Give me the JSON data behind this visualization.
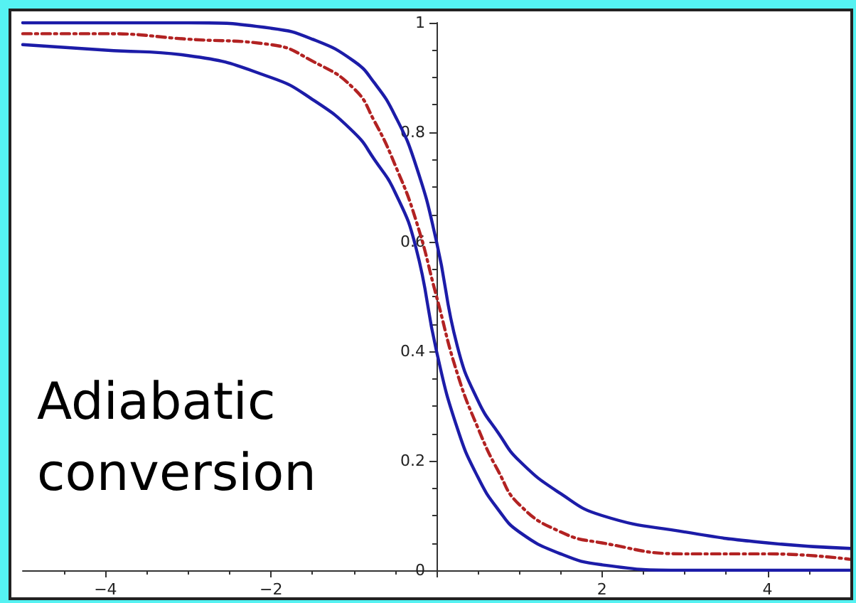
{
  "chart_data": {
    "type": "line",
    "x": [
      -5,
      -4,
      -3,
      -2,
      -1.5,
      -1,
      -0.75,
      -0.5,
      -0.25,
      0,
      0.25,
      0.5,
      0.75,
      1,
      1.5,
      2,
      3,
      4,
      5
    ],
    "series": [
      {
        "color": "#1c1ca8",
        "line_style": "solid",
        "values": [
          1.0,
          1.0,
          1.0,
          0.99,
          0.97,
          0.93,
          0.89,
          0.83,
          0.74,
          0.6,
          0.41,
          0.31,
          0.25,
          0.2,
          0.14,
          0.1,
          0.07,
          0.05,
          0.04
        ]
      },
      {
        "color": "#b22222",
        "line_style": "dashed",
        "values": [
          0.98,
          0.98,
          0.97,
          0.96,
          0.93,
          0.88,
          0.82,
          0.74,
          0.64,
          0.5,
          0.36,
          0.26,
          0.18,
          0.12,
          0.07,
          0.05,
          0.03,
          0.03,
          0.02
        ]
      },
      {
        "color": "#1c1ca8",
        "line_style": "solid",
        "values": [
          0.96,
          0.95,
          0.94,
          0.9,
          0.86,
          0.8,
          0.75,
          0.69,
          0.59,
          0.4,
          0.26,
          0.17,
          0.11,
          0.07,
          0.03,
          0.01,
          0.0,
          0.0,
          0.0
        ]
      }
    ],
    "xlim": [
      -5,
      5
    ],
    "xticks": [
      {
        "value": -4,
        "label": "−4"
      },
      {
        "value": -2,
        "label": "−2"
      },
      {
        "value": 0,
        "label": null
      },
      {
        "value": 2,
        "label": "2"
      },
      {
        "value": 4,
        "label": "4"
      }
    ],
    "ylim": [
      0,
      1
    ],
    "yticks": [
      0,
      0.2,
      0.4,
      0.6,
      0.8,
      1
    ],
    "annotations": [
      "Adiabatic conversion"
    ],
    "grid": false,
    "marker": "none"
  }
}
